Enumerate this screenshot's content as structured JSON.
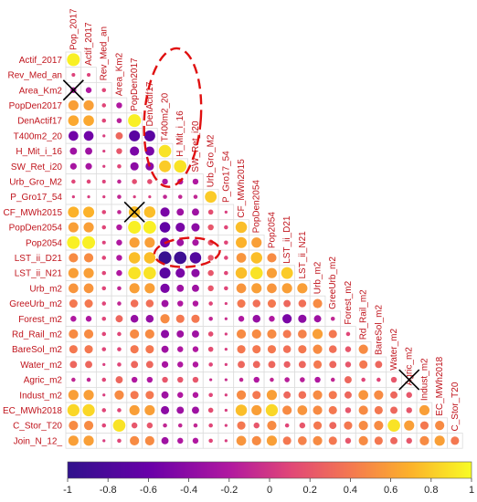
{
  "chart_data": {
    "type": "heatmap",
    "variables": [
      "Pop_2017",
      "Actif_2017",
      "Rev_Med_an",
      "Area_Km2",
      "PopDen2017",
      "DenActif17",
      "T400m2_20",
      "H_Mit_i_16",
      "SW_Ret_i20",
      "Urb_Gro_M2",
      "P_Gro17_54",
      "CF_MWh2015",
      "PopDen2054",
      "Pop2054",
      "LST_ii_D21",
      "LST_ii_N21",
      "Urb_m2",
      "GreeUrb_m2",
      "Forest_m2",
      "Rd_Rail_m2",
      "BareSol_m2",
      "Water_m2",
      "Agric_m2",
      "Indust_m2",
      "EC_MWh2018",
      "C_Stor_T20",
      "Join_N_12_"
    ],
    "row_labels": [
      "Actif_2017",
      "Rev_Med_an",
      "Area_Km2",
      "PopDen2017",
      "DenActif17",
      "T400m2_20",
      "H_Mit_i_16",
      "SW_Ret_i20",
      "Urb_Gro_M2",
      "P_Gro17_54",
      "CF_MWh2015",
      "PopDen2054",
      "Pop2054",
      "LST_ii_D21",
      "LST_ii_N21",
      "Urb_m2",
      "GreeUrb_m2",
      "Forest_m2",
      "Rd_Rail_m2",
      "BareSol_m2",
      "Water_m2",
      "Agric_m2",
      "Indust_m2",
      "EC_MWh2018",
      "C_Stor_T20",
      "Join_N_12_"
    ],
    "diag_labels": [
      "Pop_2017",
      "Actif_2017",
      "Rev_Med_an",
      "Area_Km2",
      "PopDen2017",
      "DenActif17",
      "T400m2_20",
      "H_Mit_i_16",
      "SW_Ret_i20",
      "Urb_Gro_M2",
      "P_Gro17_54",
      "CF_MWh2015",
      "PopDen2054",
      "Pop2054",
      "LST_ii_D21",
      "LST_ii_N21",
      "Urb_m2",
      "GreeUrb_m2",
      "Forest_m2",
      "Rd_Rail_m2",
      "BareSol_m2",
      "Water_m2",
      "Agric_m2",
      "Indust_m2",
      "EC_MWh2018",
      "C_Stor_T20"
    ],
    "matrix": [
      [
        0.95
      ],
      [
        0.08,
        0.08
      ],
      [
        -0.2,
        -0.2,
        0.1
      ],
      [
        0.6,
        0.6,
        0.1,
        -0.2
      ],
      [
        0.65,
        0.65,
        0.1,
        -0.15,
        0.95
      ],
      [
        -0.55,
        -0.55,
        0.05,
        0.3,
        -0.7,
        -0.7
      ],
      [
        -0.3,
        -0.3,
        0.05,
        0.2,
        -0.5,
        -0.5,
        0.9
      ],
      [
        -0.25,
        -0.25,
        0.05,
        0.1,
        -0.4,
        -0.4,
        0.8,
        0.9
      ],
      [
        0.1,
        0.1,
        0.08,
        -0.1,
        0.15,
        0.15,
        -0.2,
        -0.2,
        -0.2
      ],
      [
        0.05,
        0.05,
        0.05,
        -0.1,
        0.05,
        0.05,
        -0.1,
        -0.1,
        -0.1,
        0.8
      ],
      [
        0.7,
        0.7,
        0.1,
        -0.1,
        0.75,
        0.75,
        -0.5,
        -0.3,
        -0.3,
        0.15,
        0.05
      ],
      [
        0.6,
        0.6,
        0.1,
        -0.2,
        0.95,
        0.95,
        -0.65,
        -0.5,
        -0.4,
        0.2,
        0.1,
        0.75
      ],
      [
        0.95,
        0.95,
        0.08,
        -0.2,
        0.6,
        0.6,
        -0.55,
        -0.3,
        -0.25,
        0.2,
        0.1,
        0.7,
        0.6
      ],
      [
        0.5,
        0.5,
        0.1,
        -0.2,
        0.75,
        0.75,
        -0.95,
        -0.9,
        -0.75,
        0.2,
        0.1,
        0.55,
        0.75,
        0.5
      ],
      [
        0.6,
        0.6,
        0.1,
        -0.2,
        0.9,
        0.9,
        -0.7,
        -0.5,
        -0.4,
        0.2,
        0.1,
        0.75,
        0.9,
        0.6,
        0.8
      ],
      [
        0.55,
        0.55,
        0.1,
        -0.1,
        0.6,
        0.6,
        -0.5,
        -0.3,
        -0.3,
        0.2,
        0.1,
        0.55,
        0.6,
        0.55,
        0.6,
        0.6
      ],
      [
        0.4,
        0.4,
        0.1,
        -0.1,
        0.35,
        0.35,
        -0.3,
        -0.2,
        -0.2,
        0.1,
        0.05,
        0.4,
        0.35,
        0.4,
        0.3,
        0.35,
        0.5
      ],
      [
        -0.2,
        -0.2,
        0.1,
        0.3,
        -0.35,
        -0.35,
        0.5,
        0.4,
        0.4,
        -0.1,
        -0.05,
        -0.2,
        -0.35,
        -0.2,
        -0.5,
        -0.4,
        -0.3,
        -0.1
      ],
      [
        0.5,
        0.5,
        0.1,
        0.1,
        0.5,
        0.5,
        -0.4,
        -0.3,
        -0.3,
        0.15,
        0.05,
        0.5,
        0.5,
        0.5,
        0.4,
        0.45,
        0.6,
        0.4,
        0.1
      ],
      [
        0.4,
        0.4,
        0.1,
        0.1,
        0.4,
        0.4,
        -0.3,
        -0.2,
        -0.2,
        0.15,
        0.05,
        0.4,
        0.4,
        0.4,
        0.35,
        0.4,
        0.5,
        0.35,
        0.2,
        0.5
      ],
      [
        0.3,
        0.3,
        0.05,
        0.1,
        0.3,
        0.3,
        -0.25,
        -0.2,
        -0.2,
        0.1,
        0.05,
        0.3,
        0.3,
        0.3,
        0.25,
        0.3,
        0.4,
        0.3,
        0.2,
        0.4,
        0.3
      ],
      [
        -0.1,
        -0.1,
        0.1,
        0.3,
        -0.2,
        -0.2,
        0.2,
        0.2,
        0.2,
        -0.05,
        -0.05,
        -0.1,
        -0.2,
        -0.1,
        -0.15,
        -0.15,
        -0.2,
        -0.1,
        0.3,
        0.1,
        0.1,
        0.2
      ],
      [
        0.6,
        0.6,
        0.05,
        0.5,
        0.4,
        0.4,
        -0.3,
        -0.2,
        -0.2,
        0.1,
        0.05,
        0.5,
        0.4,
        0.6,
        0.3,
        0.35,
        0.5,
        0.4,
        0.3,
        0.55,
        0.5,
        0.3,
        0.2
      ],
      [
        0.85,
        0.85,
        0.1,
        0.1,
        0.6,
        0.6,
        -0.4,
        -0.3,
        -0.3,
        0.15,
        0.05,
        0.75,
        0.6,
        0.85,
        0.5,
        0.55,
        0.5,
        0.4,
        0.2,
        0.5,
        0.4,
        0.3,
        0.2,
        0.6
      ],
      [
        0.5,
        0.5,
        0.1,
        0.9,
        0.2,
        0.2,
        -0.1,
        -0.1,
        -0.1,
        0.1,
        0.05,
        0.4,
        0.2,
        0.5,
        0.1,
        0.2,
        0.4,
        0.3,
        0.4,
        0.5,
        0.5,
        0.9,
        0.6,
        0.4,
        0.5
      ],
      [
        0.6,
        0.6,
        0.05,
        0.1,
        0.5,
        0.5,
        -0.3,
        -0.2,
        -0.2,
        0.1,
        0.05,
        0.55,
        0.5,
        0.6,
        0.4,
        0.45,
        0.5,
        0.4,
        0.2,
        0.5,
        0.4,
        0.3,
        0.2,
        0.5,
        0.6,
        0.4
      ]
    ],
    "colorbar": {
      "min": -1,
      "max": 1,
      "ticks": [
        "-1",
        "-0.8",
        "-0.6",
        "-0.4",
        "-0.2",
        "0",
        "0.2",
        "0.4",
        "0.6",
        "0.8",
        "1"
      ]
    },
    "crossed_cells": [
      [
        2,
        0
      ],
      [
        10,
        4
      ],
      [
        21,
        22
      ]
    ],
    "colors": {
      "label": "#c0141c",
      "grid": "#dddddd",
      "annotation": "#e01010",
      "cross": "#000000"
    }
  }
}
